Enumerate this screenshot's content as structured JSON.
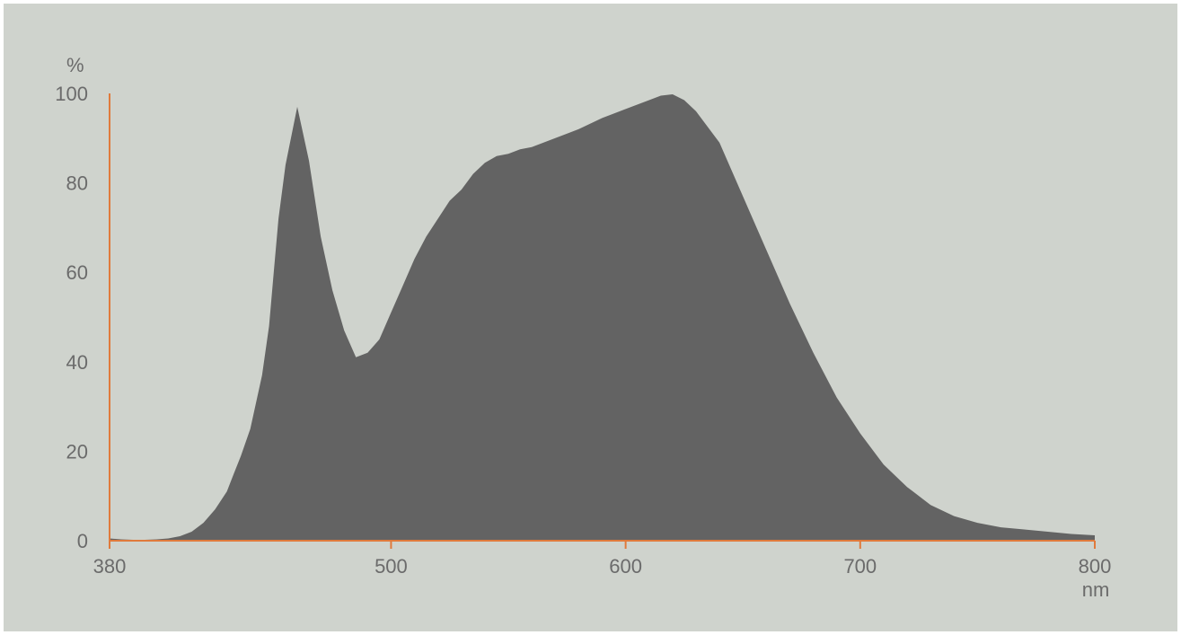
{
  "chart_data": {
    "type": "area",
    "title": "",
    "xlabel": "nm",
    "ylabel": "%",
    "xlim": [
      380,
      800
    ],
    "ylim": [
      0,
      100
    ],
    "x_ticks": [
      380,
      500,
      600,
      700,
      800
    ],
    "y_ticks": [
      0,
      20,
      40,
      60,
      80,
      100
    ],
    "grid": false,
    "legend": "none",
    "colors": {
      "fill": "#636363",
      "axis": "#e07a3c",
      "text": "#6b6b6b",
      "background": "#cfd3cd"
    },
    "series": [
      {
        "x": [
          380,
          385,
          390,
          395,
          400,
          405,
          410,
          415,
          420,
          425,
          430,
          433,
          436,
          440,
          445,
          448,
          450,
          452,
          455,
          460,
          465,
          470,
          475,
          480,
          485,
          490,
          495,
          500,
          505,
          510,
          515,
          520,
          525,
          530,
          535,
          540,
          545,
          550,
          555,
          560,
          570,
          580,
          590,
          600,
          610,
          615,
          620,
          625,
          630,
          640,
          650,
          660,
          670,
          680,
          690,
          700,
          710,
          720,
          730,
          740,
          750,
          760,
          770,
          780,
          790,
          800
        ],
        "y": [
          0.5,
          0.3,
          0.2,
          0.2,
          0.3,
          0.5,
          1,
          2,
          4,
          7,
          11,
          15,
          19,
          25,
          37,
          48,
          60,
          72,
          84,
          97,
          85,
          68,
          56,
          47,
          41,
          42,
          45,
          51,
          57,
          63,
          68,
          72,
          76,
          78.5,
          82,
          84.5,
          86,
          86.5,
          87.5,
          88,
          90,
          92,
          94.5,
          96.5,
          98.5,
          99.5,
          99.8,
          98.5,
          96,
          89,
          77,
          65,
          53,
          42,
          32,
          24,
          17,
          12,
          8,
          5.5,
          4,
          3,
          2.5,
          2,
          1.5,
          1.2
        ]
      }
    ]
  }
}
